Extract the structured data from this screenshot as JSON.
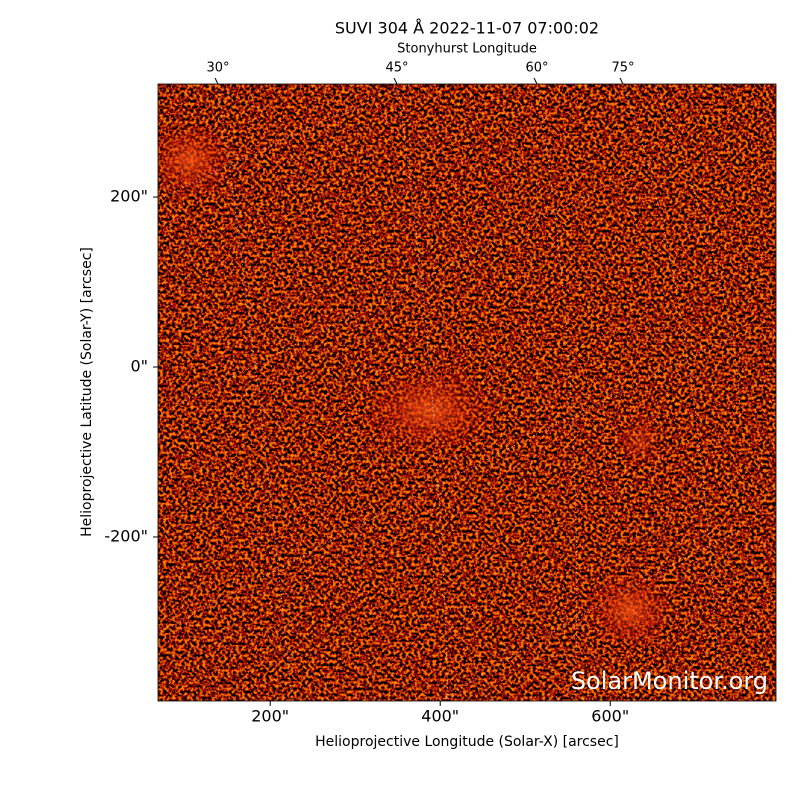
{
  "chart_data": {
    "type": "image",
    "title": "SUVI 304 Å 2022-11-07 07:00:02",
    "top_axis_label": "Stonyhurst Longitude",
    "xlabel": "Helioprojective Longitude (Solar-X) [arcsec]",
    "ylabel": "Helioprojective Latitude (Solar-Y) [arcsec]",
    "watermark": "SolarMonitor.org",
    "xlim": [
      68,
      795
    ],
    "ylim": [
      -393,
      333
    ],
    "xticks": [
      {
        "value": 200,
        "label": "200\""
      },
      {
        "value": 400,
        "label": "400\""
      },
      {
        "value": 600,
        "label": "600\""
      }
    ],
    "yticks": [
      {
        "value": -200,
        "label": "-200\""
      },
      {
        "value": 0,
        "label": "0\""
      },
      {
        "value": 200,
        "label": "200\""
      }
    ],
    "top_ticks": [
      {
        "value": 30,
        "label": "30°"
      },
      {
        "value": 45,
        "label": "45°"
      },
      {
        "value": 60,
        "label": "60°"
      },
      {
        "value": 75,
        "label": "75°"
      }
    ]
  }
}
